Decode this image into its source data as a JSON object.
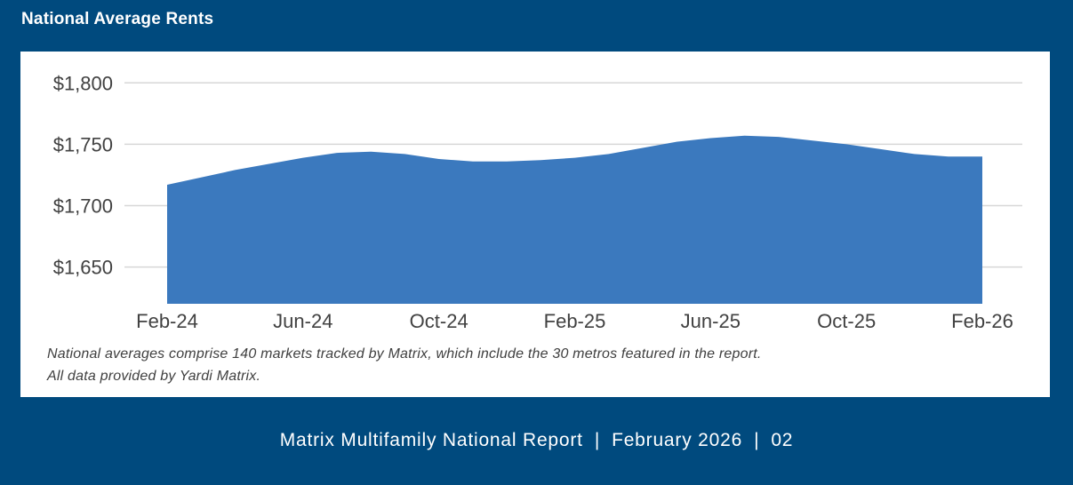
{
  "header": {
    "title": "National Average Rents"
  },
  "colors": {
    "background": "#004A7E",
    "panel": "#FFFFFF",
    "area_fill": "#3B79BE",
    "gridline": "#D7D7D7",
    "axis_text": "#414141",
    "footnote_text": "#3F3F3F",
    "footer_text": "#FFFFFF"
  },
  "chart_data": {
    "type": "area",
    "title": "National Average Rents",
    "series_name": "National Average Rent ($)",
    "x": [
      "Feb-24",
      "Mar-24",
      "Apr-24",
      "May-24",
      "Jun-24",
      "Jul-24",
      "Aug-24",
      "Sep-24",
      "Oct-24",
      "Nov-24",
      "Dec-24",
      "Jan-25",
      "Feb-25",
      "Mar-25",
      "Apr-25",
      "May-25",
      "Jun-25",
      "Jul-25",
      "Aug-25",
      "Sep-25",
      "Oct-25",
      "Nov-25",
      "Dec-25",
      "Jan-26",
      "Feb-26"
    ],
    "values": [
      1717,
      1723,
      1729,
      1734,
      1739,
      1743,
      1744,
      1742,
      1738,
      1736,
      1736,
      1737,
      1739,
      1742,
      1747,
      1752,
      1755,
      1757,
      1756,
      1753,
      1750,
      1746,
      1742,
      1740,
      1740
    ],
    "xtick_labels": [
      "Feb-24",
      "Jun-24",
      "Oct-24",
      "Feb-25",
      "Jun-25",
      "Oct-25",
      "Feb-26"
    ],
    "ytick_values": [
      1800,
      1750,
      1700,
      1650
    ],
    "ytick_labels": [
      "$1,800",
      "$1,750",
      "$1,700",
      "$1,650"
    ],
    "ylim": [
      1620,
      1800
    ],
    "xlabel": "",
    "ylabel": "",
    "grid": true,
    "legend": false
  },
  "footnote": {
    "line1": "National averages comprise 140 markets tracked by Matrix, which include the 30 metros featured in the report.",
    "line2": "All data provided by Yardi Matrix."
  },
  "footer": {
    "report_title": "Matrix Multifamily National Report",
    "separator": "|",
    "date": "February 2026",
    "page_number": "02"
  }
}
